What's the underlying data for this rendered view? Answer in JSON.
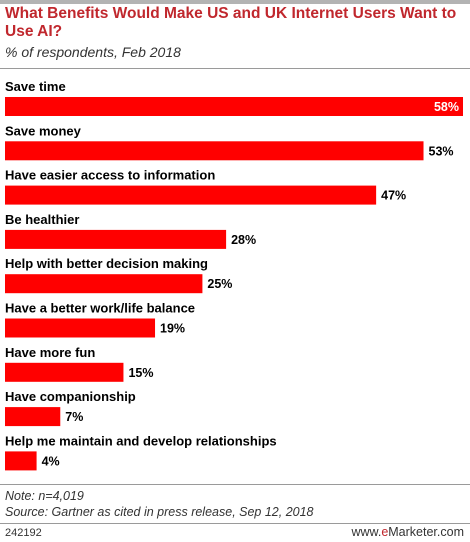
{
  "chart_data": {
    "type": "bar",
    "orientation": "horizontal",
    "title": "What Benefits Would Make US and UK Internet Users Want to Use AI?",
    "subtitle": "% of respondents, Feb 2018",
    "categories": [
      "Save time",
      "Save money",
      "Have easier access to information",
      "Be healthier",
      "Help with better decision making",
      "Have a better work/life balance",
      "Have more fun",
      "Have companionship",
      "Help me maintain and develop relationships"
    ],
    "values": [
      58,
      53,
      47,
      28,
      25,
      19,
      15,
      7,
      4
    ],
    "value_labels": [
      "58%",
      "53%",
      "47%",
      "28%",
      "25%",
      "19%",
      "15%",
      "7%",
      "4%"
    ],
    "xlim": [
      0,
      58
    ],
    "bar_color": "#ff0000",
    "grid": false,
    "legend": "none"
  },
  "note": "Note: n=4,019",
  "source": "Source: Gartner as cited in press release, Sep 12, 2018",
  "chart_id": "242192",
  "brand": {
    "e": "e",
    "rest": "Marketer",
    "accent": "#c0272d"
  }
}
